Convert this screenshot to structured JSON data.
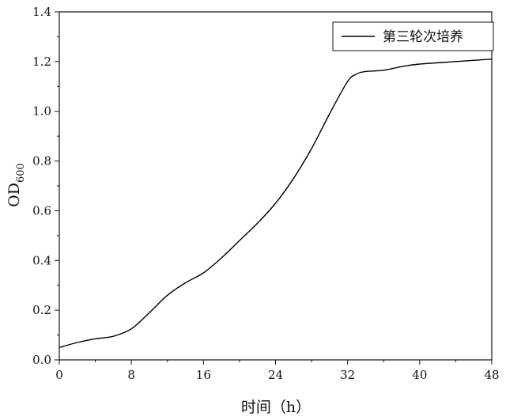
{
  "chart_data": {
    "type": "line",
    "title": "",
    "xlabel": "时间（h）",
    "ylabel": {
      "main": "OD",
      "sub": "600"
    },
    "xlim": [
      0,
      48
    ],
    "ylim": [
      0,
      1.4
    ],
    "xticks": [
      "0",
      "8",
      "16",
      "24",
      "32",
      "40",
      "48"
    ],
    "yticks": [
      "0.0",
      "0.2",
      "0.4",
      "0.6",
      "0.8",
      "1.0",
      "1.2",
      "1.4"
    ],
    "grid": false,
    "legend_position": "top-right",
    "series": [
      {
        "name": "第三轮次培养",
        "color": "#000000",
        "x": [
          0,
          2,
          4,
          6,
          8,
          10,
          12,
          14,
          16,
          18,
          20,
          22,
          24,
          26,
          28,
          30,
          32,
          33,
          34,
          36,
          38,
          40,
          44,
          48
        ],
        "y": [
          0.05,
          0.07,
          0.085,
          0.095,
          0.125,
          0.19,
          0.26,
          0.31,
          0.35,
          0.41,
          0.48,
          0.55,
          0.63,
          0.73,
          0.85,
          0.99,
          1.12,
          1.15,
          1.16,
          1.165,
          1.18,
          1.19,
          1.2,
          1.21
        ]
      }
    ]
  }
}
